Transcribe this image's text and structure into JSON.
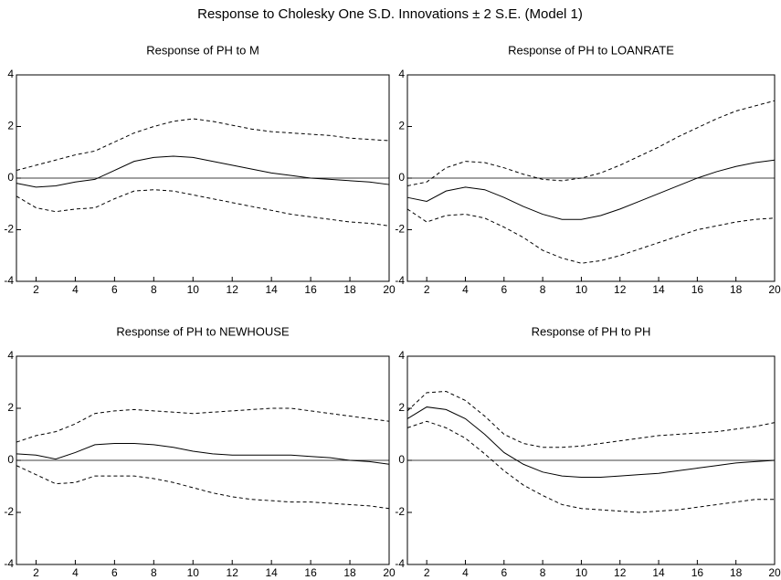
{
  "title": "Response to Cholesky One S.D. Innovations ± 2 S.E. (Model 1)",
  "chart_data": [
    {
      "type": "line",
      "title": "Response of PH to M",
      "x": [
        1,
        2,
        3,
        4,
        5,
        6,
        7,
        8,
        9,
        10,
        11,
        12,
        13,
        14,
        15,
        16,
        17,
        18,
        19,
        20
      ],
      "xlim": [
        1,
        20
      ],
      "xticks": [
        2,
        4,
        6,
        8,
        10,
        12,
        14,
        16,
        18,
        20
      ],
      "ylim": [
        -4,
        4
      ],
      "yticks": [
        -4,
        -2,
        0,
        2,
        4
      ],
      "hline": 0,
      "series": [
        {
          "color": "#000000",
          "dashed": false,
          "values": [
            -0.2,
            -0.35,
            -0.3,
            -0.15,
            -0.05,
            0.3,
            0.65,
            0.8,
            0.85,
            0.8,
            0.65,
            0.5,
            0.35,
            0.2,
            0.1,
            0.0,
            -0.05,
            -0.1,
            -0.15,
            -0.25
          ]
        },
        {
          "color": "#000000",
          "dashed": true,
          "values": [
            0.3,
            0.5,
            0.7,
            0.9,
            1.05,
            1.4,
            1.75,
            2.0,
            2.2,
            2.3,
            2.2,
            2.05,
            1.9,
            1.8,
            1.75,
            1.7,
            1.65,
            1.55,
            1.5,
            1.45
          ]
        },
        {
          "color": "#000000",
          "dashed": true,
          "values": [
            -0.7,
            -1.15,
            -1.3,
            -1.2,
            -1.15,
            -0.8,
            -0.5,
            -0.45,
            -0.5,
            -0.65,
            -0.8,
            -0.95,
            -1.1,
            -1.25,
            -1.4,
            -1.5,
            -1.6,
            -1.7,
            -1.75,
            -1.85
          ]
        }
      ]
    },
    {
      "type": "line",
      "title": "Response of PH to LOANRATE",
      "x": [
        1,
        2,
        3,
        4,
        5,
        6,
        7,
        8,
        9,
        10,
        11,
        12,
        13,
        14,
        15,
        16,
        17,
        18,
        19,
        20
      ],
      "xlim": [
        1,
        20
      ],
      "xticks": [
        2,
        4,
        6,
        8,
        10,
        12,
        14,
        16,
        18,
        20
      ],
      "ylim": [
        -4,
        4
      ],
      "yticks": [
        -4,
        -2,
        0,
        2,
        4
      ],
      "hline": 0,
      "series": [
        {
          "color": "#000000",
          "dashed": false,
          "values": [
            -0.75,
            -0.9,
            -0.5,
            -0.35,
            -0.45,
            -0.75,
            -1.1,
            -1.4,
            -1.6,
            -1.6,
            -1.45,
            -1.2,
            -0.9,
            -0.6,
            -0.3,
            0.0,
            0.25,
            0.45,
            0.6,
            0.7
          ]
        },
        {
          "color": "#000000",
          "dashed": true,
          "values": [
            -0.3,
            -0.15,
            0.4,
            0.65,
            0.6,
            0.4,
            0.15,
            -0.05,
            -0.1,
            0.0,
            0.2,
            0.5,
            0.85,
            1.2,
            1.6,
            1.95,
            2.3,
            2.6,
            2.8,
            3.0
          ]
        },
        {
          "color": "#000000",
          "dashed": true,
          "values": [
            -1.2,
            -1.7,
            -1.45,
            -1.4,
            -1.55,
            -1.9,
            -2.3,
            -2.8,
            -3.1,
            -3.3,
            -3.2,
            -3.0,
            -2.75,
            -2.5,
            -2.25,
            -2.0,
            -1.85,
            -1.7,
            -1.6,
            -1.55
          ]
        }
      ]
    },
    {
      "type": "line",
      "title": "Response of PH to NEWHOUSE",
      "x": [
        1,
        2,
        3,
        4,
        5,
        6,
        7,
        8,
        9,
        10,
        11,
        12,
        13,
        14,
        15,
        16,
        17,
        18,
        19,
        20
      ],
      "xlim": [
        1,
        20
      ],
      "xticks": [
        2,
        4,
        6,
        8,
        10,
        12,
        14,
        16,
        18,
        20
      ],
      "ylim": [
        -4,
        4
      ],
      "yticks": [
        -4,
        -2,
        0,
        2,
        4
      ],
      "hline": 0,
      "series": [
        {
          "color": "#000000",
          "dashed": false,
          "values": [
            0.25,
            0.2,
            0.05,
            0.3,
            0.6,
            0.65,
            0.65,
            0.6,
            0.5,
            0.35,
            0.25,
            0.2,
            0.2,
            0.2,
            0.2,
            0.15,
            0.1,
            0.0,
            -0.05,
            -0.15
          ]
        },
        {
          "color": "#000000",
          "dashed": true,
          "values": [
            0.7,
            0.95,
            1.1,
            1.4,
            1.8,
            1.9,
            1.95,
            1.9,
            1.85,
            1.8,
            1.85,
            1.9,
            1.95,
            2.0,
            2.0,
            1.9,
            1.8,
            1.7,
            1.6,
            1.5
          ]
        },
        {
          "color": "#000000",
          "dashed": true,
          "values": [
            -0.2,
            -0.55,
            -0.9,
            -0.85,
            -0.6,
            -0.6,
            -0.6,
            -0.7,
            -0.85,
            -1.05,
            -1.25,
            -1.4,
            -1.5,
            -1.55,
            -1.6,
            -1.6,
            -1.65,
            -1.7,
            -1.75,
            -1.85
          ]
        }
      ]
    },
    {
      "type": "line",
      "title": "Response of PH to PH",
      "x": [
        1,
        2,
        3,
        4,
        5,
        6,
        7,
        8,
        9,
        10,
        11,
        12,
        13,
        14,
        15,
        16,
        17,
        18,
        19,
        20
      ],
      "xlim": [
        1,
        20
      ],
      "xticks": [
        2,
        4,
        6,
        8,
        10,
        12,
        14,
        16,
        18,
        20
      ],
      "ylim": [
        -4,
        4
      ],
      "yticks": [
        -4,
        -2,
        0,
        2,
        4
      ],
      "hline": 0,
      "series": [
        {
          "color": "#000000",
          "dashed": false,
          "values": [
            1.6,
            2.05,
            1.95,
            1.6,
            1.0,
            0.3,
            -0.15,
            -0.45,
            -0.6,
            -0.65,
            -0.65,
            -0.6,
            -0.55,
            -0.5,
            -0.4,
            -0.3,
            -0.2,
            -0.1,
            -0.05,
            0.0
          ]
        },
        {
          "color": "#000000",
          "dashed": true,
          "values": [
            1.9,
            2.6,
            2.65,
            2.3,
            1.7,
            1.0,
            0.65,
            0.5,
            0.5,
            0.55,
            0.65,
            0.75,
            0.85,
            0.95,
            1.0,
            1.05,
            1.1,
            1.2,
            1.3,
            1.45
          ]
        },
        {
          "color": "#000000",
          "dashed": true,
          "values": [
            1.25,
            1.5,
            1.25,
            0.85,
            0.25,
            -0.4,
            -0.95,
            -1.35,
            -1.7,
            -1.85,
            -1.9,
            -1.95,
            -2.0,
            -1.95,
            -1.9,
            -1.8,
            -1.7,
            -1.6,
            -1.5,
            -1.5
          ]
        }
      ]
    }
  ]
}
